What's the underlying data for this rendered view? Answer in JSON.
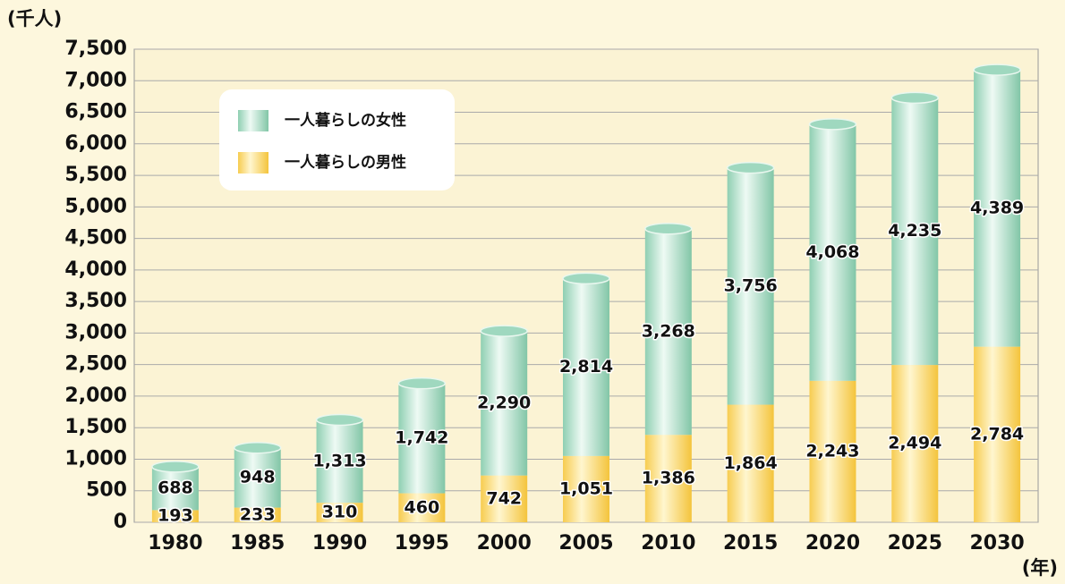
{
  "chart_data": {
    "type": "stacked_bar",
    "y_label": "(千人)",
    "x_label": "(年)",
    "categories": [
      "1980",
      "1985",
      "1990",
      "1995",
      "2000",
      "2005",
      "2010",
      "2015",
      "2020",
      "2025",
      "2030"
    ],
    "series": [
      {
        "name": "一人暮らしの男性",
        "color": "#f8d262",
        "values": [
          193,
          233,
          310,
          460,
          742,
          1051,
          1386,
          1864,
          2243,
          2494,
          2784
        ],
        "value_labels": [
          "193",
          "233",
          "310",
          "460",
          "742",
          "1,051",
          "1,386",
          "1,864",
          "2,243",
          "2,494",
          "2,784"
        ]
      },
      {
        "name": "一人暮らしの女性",
        "color": "#9fd8bf",
        "values": [
          688,
          948,
          1313,
          1742,
          2290,
          2814,
          3268,
          3756,
          4068,
          4235,
          4389
        ],
        "value_labels": [
          "688",
          "948",
          "1,313",
          "1,742",
          "2,290",
          "2,814",
          "3,268",
          "3,756",
          "4,068",
          "4,235",
          "4,389"
        ]
      }
    ],
    "ylim": [
      0,
      7500
    ],
    "yticks": [
      0,
      500,
      {
        "value": 1000,
        "label": "1,000"
      },
      {
        "value": 1500,
        "label": "1,500"
      },
      {
        "value": 2000,
        "label": "2,000"
      },
      {
        "value": 2500,
        "label": "2,500"
      },
      {
        "value": 3000,
        "label": "3,000"
      },
      {
        "value": 3500,
        "label": "3,500"
      },
      {
        "value": 4000,
        "label": "4,000"
      },
      {
        "value": 4500,
        "label": "4,500"
      },
      {
        "value": 5000,
        "label": "5,000"
      },
      {
        "value": 5500,
        "label": "5,500"
      },
      {
        "value": 6000,
        "label": "6,000"
      },
      {
        "value": 6500,
        "label": "6,500"
      },
      {
        "value": 7000,
        "label": "7,000"
      },
      {
        "value": 7500,
        "label": "7,500"
      }
    ],
    "grid": true
  }
}
